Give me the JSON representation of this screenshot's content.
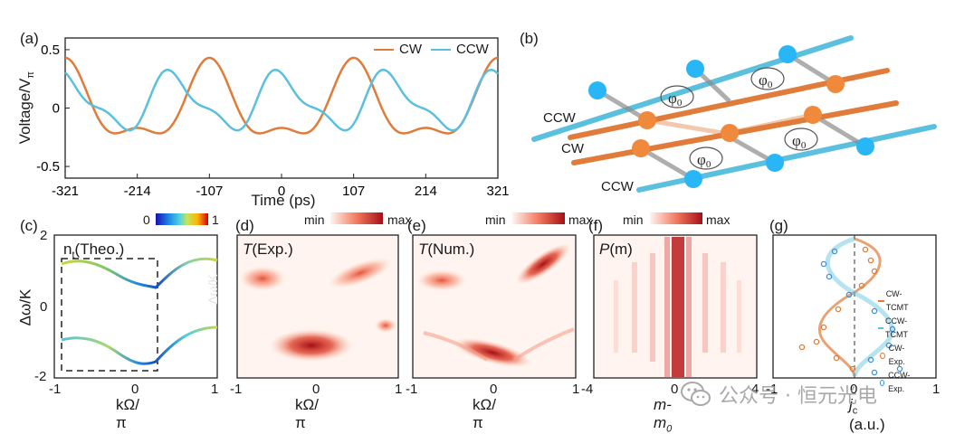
{
  "panels": {
    "a": "(a)",
    "b": "(b)",
    "c": "(c)",
    "d": "(d)",
    "e": "(e)",
    "f": "(f)",
    "g": "(g)"
  },
  "chart_a": {
    "type": "line",
    "ylabel": "Voltage/V",
    "ylabel_sub": "π",
    "xlabel": "Time (ps)",
    "xticks": [
      "-321",
      "-214",
      "-107",
      "0",
      "107",
      "214",
      "321"
    ],
    "yticks": [
      "0.5",
      "0",
      "-0.5"
    ],
    "xlim": [
      -321,
      321
    ],
    "ylim": [
      -0.6,
      0.6
    ],
    "series": [
      {
        "name": "CW",
        "color": "#e07b39"
      },
      {
        "name": "CCW",
        "color": "#5bc0de"
      }
    ]
  },
  "diagram_b": {
    "labels": [
      "CCW",
      "CW",
      "CCW"
    ],
    "phase_label": "φ",
    "phase_sub": "0",
    "colors": {
      "ccw": "#5bc0de",
      "cw": "#e07b39",
      "node_ccw": "#29b6f6",
      "node_cw": "#ef8a3c",
      "rung": "#9e9e9e"
    }
  },
  "chart_c": {
    "title": "n",
    "title_sub": "t",
    "title_rest": "(Theo.)",
    "ylabel": "Δω/K",
    "xlabel": "kΩ/π",
    "yticks": [
      "2",
      "0",
      "-2"
    ],
    "xticks": [
      "-1",
      "0",
      "1"
    ],
    "cbar_min": "0",
    "cbar_max": "1",
    "ghost": "Δω/K"
  },
  "chart_d": {
    "title": "T",
    "title_rest": "(Exp.)",
    "xlabel": "kΩ/π",
    "xticks": [
      "-1",
      "0",
      "1"
    ],
    "cbar_min": "min",
    "cbar_max": "max"
  },
  "chart_e": {
    "title": "T",
    "title_rest": "(Num.)",
    "xlabel": "kΩ/π",
    "xticks": [
      "-1",
      "0",
      "1"
    ],
    "cbar_min": "min",
    "cbar_max": "max"
  },
  "chart_f": {
    "title": "P",
    "title_rest": "(m)",
    "xlabel": "m-m",
    "xlabel_sub": "0",
    "xticks": [
      "-4",
      "0",
      "4"
    ],
    "cbar_min": "min",
    "cbar_max": "max"
  },
  "chart_g": {
    "xlabel": "j",
    "xlabel_sub": "c",
    "xlabel_rest": " (a.u.)",
    "xticks": [
      "-1",
      "0",
      "1"
    ],
    "legend": [
      {
        "name": "CW-TCMT",
        "color": "#e07b39",
        "kind": "line"
      },
      {
        "name": "CCW-TCMT",
        "color": "#5bc0de",
        "kind": "line"
      },
      {
        "name": "CW-Exp.",
        "color": "#e07b39",
        "kind": "marker"
      },
      {
        "name": "CCW-Exp.",
        "color": "#3f8fd6",
        "kind": "marker"
      }
    ]
  },
  "watermark": {
    "text": "公众号 · 恒元光电",
    "icon": "wechat-icon"
  }
}
